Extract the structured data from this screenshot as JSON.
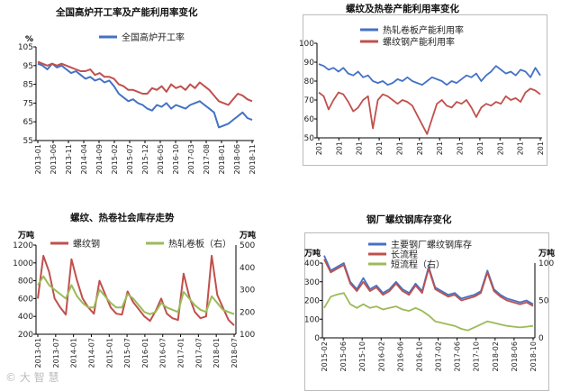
{
  "watermark": "© 大 智 慧",
  "chart_data": [
    {
      "type": "line",
      "title": "全国高炉开工率及产能利用率变化",
      "yunit": "%",
      "ylim": [
        55,
        105
      ],
      "yticks": [
        "105",
        "95",
        "85",
        "75",
        "65",
        "55"
      ],
      "xticks": [
        "2013-01",
        "2013-06",
        "2013-11",
        "2014-04",
        "2014-09",
        "2015-02",
        "2015-07",
        "2015-12",
        "2016-05",
        "2016-10",
        "2017-03",
        "2017-08",
        "2018-01",
        "2018-06",
        "2018-11"
      ],
      "series": [
        {
          "name": "全国高炉开工率",
          "color": "#4472C4",
          "values": [
            96,
            95,
            93,
            96,
            94,
            95,
            93,
            91,
            92,
            90,
            88,
            89,
            87,
            88,
            86,
            87,
            84,
            80,
            78,
            76,
            77,
            75,
            74,
            72,
            71,
            74,
            73,
            75,
            72,
            74,
            73,
            72,
            74,
            75,
            76,
            74,
            72,
            70,
            62,
            63,
            64,
            66,
            68,
            70,
            67,
            66
          ]
        },
        {
          "name": "",
          "color": "#C0504D",
          "values": [
            97,
            96,
            95,
            96,
            95,
            96,
            95,
            94,
            93,
            92,
            92,
            93,
            90,
            91,
            89,
            89,
            88,
            85,
            84,
            82,
            82,
            81,
            80,
            80,
            83,
            82,
            84,
            81,
            85,
            83,
            84,
            82,
            85,
            83,
            86,
            84,
            82,
            79,
            76,
            75,
            74,
            77,
            80,
            79,
            77,
            76
          ]
        }
      ]
    },
    {
      "type": "line",
      "title": "螺纹及热卷产能利用率变化",
      "ylim": [
        50,
        100
      ],
      "yticks": [
        "100",
        "90",
        "80",
        "70",
        "60",
        "50"
      ],
      "xtick_label": "201",
      "series": [
        {
          "name": "热轧卷板产能利用率",
          "color": "#4472C4",
          "values": [
            89,
            88,
            86,
            87,
            85,
            87,
            84,
            83,
            85,
            82,
            83,
            80,
            79,
            80,
            78,
            79,
            81,
            80,
            82,
            80,
            79,
            78,
            80,
            82,
            81,
            80,
            78,
            80,
            79,
            81,
            83,
            82,
            84,
            80,
            83,
            85,
            88,
            86,
            84,
            85,
            83,
            86,
            85,
            82,
            87,
            83
          ]
        },
        {
          "name": "螺纹钢产能利用率",
          "color": "#C0504D",
          "values": [
            74,
            72,
            65,
            70,
            74,
            73,
            69,
            64,
            66,
            70,
            72,
            55,
            70,
            73,
            72,
            70,
            68,
            70,
            69,
            67,
            62,
            57,
            52,
            60,
            68,
            70,
            67,
            66,
            69,
            68,
            70,
            66,
            61,
            66,
            68,
            67,
            69,
            68,
            72,
            70,
            71,
            69,
            74,
            76,
            75,
            73
          ]
        }
      ]
    },
    {
      "type": "line",
      "title": "螺纹、热卷社会库存走势",
      "yunit_left": "万吨",
      "yunit_right": "万吨",
      "ylim": [
        200,
        1200
      ],
      "ylim_right": [
        100,
        500
      ],
      "yticks": [
        "1200",
        "1000",
        "800",
        "600",
        "400",
        "200"
      ],
      "yticks_right": [
        "500",
        "400",
        "300",
        "200",
        "100"
      ],
      "xticks": [
        "2013-01",
        "2013-07",
        "2014-01",
        "2014-07",
        "2015-01",
        "2015-07",
        "2016-01",
        "2016-07",
        "2017-01",
        "2017-07",
        "2018-01",
        "2018-07"
      ],
      "series": [
        {
          "name": "螺纹钢",
          "color": "#C0504D",
          "axis": "left",
          "values": [
            600,
            1080,
            900,
            600,
            500,
            420,
            1040,
            800,
            600,
            500,
            430,
            800,
            650,
            500,
            430,
            420,
            680,
            560,
            480,
            400,
            350,
            460,
            600,
            430,
            380,
            360,
            880,
            620,
            450,
            380,
            400,
            1080,
            640,
            500,
            360,
            300
          ]
        },
        {
          "name": "热轧卷板（右）",
          "color": "#9BBB59",
          "axis": "right",
          "values": [
            320,
            360,
            320,
            300,
            280,
            260,
            320,
            270,
            240,
            220,
            220,
            300,
            270,
            240,
            220,
            220,
            280,
            260,
            230,
            200,
            190,
            200,
            240,
            220,
            210,
            200,
            290,
            260,
            230,
            210,
            200,
            270,
            240,
            210,
            200,
            190
          ]
        }
      ]
    },
    {
      "type": "line",
      "title": "钢厂螺纹钢库存变化",
      "yunit_left": "万吨",
      "yunit_right": "万吨",
      "ylim": [
        0,
        400
      ],
      "ylim_right": [
        0,
        100
      ],
      "yticks": [
        "400",
        "300",
        "200",
        "100",
        "0"
      ],
      "yticks_right": [
        "100",
        "50",
        "0"
      ],
      "xticks": [
        "2015-02",
        "2015-06",
        "2015-10",
        "2016-02",
        "2016-06",
        "2016-10",
        "2017-02",
        "2017-06",
        "2017-10",
        "2018-02",
        "2018-06",
        "2018-10"
      ],
      "series": [
        {
          "name": "主要钢厂螺纹钢库存",
          "color": "#4472C4",
          "axis": "left",
          "values": [
            440,
            360,
            380,
            400,
            300,
            260,
            320,
            260,
            280,
            240,
            260,
            300,
            260,
            240,
            290,
            250,
            380,
            270,
            250,
            230,
            240,
            210,
            220,
            230,
            250,
            360,
            260,
            230,
            210,
            200,
            190,
            200,
            180
          ]
        },
        {
          "name": "长流程",
          "color": "#C0504D",
          "axis": "left",
          "values": [
            420,
            350,
            370,
            390,
            290,
            250,
            300,
            250,
            270,
            230,
            250,
            290,
            250,
            230,
            280,
            240,
            370,
            260,
            240,
            220,
            230,
            200,
            210,
            220,
            240,
            350,
            250,
            220,
            200,
            190,
            180,
            190,
            170
          ]
        },
        {
          "name": "短流程（右）",
          "color": "#9BBB59",
          "axis": "right",
          "values": [
            40,
            55,
            58,
            60,
            45,
            40,
            45,
            40,
            42,
            38,
            40,
            42,
            38,
            36,
            40,
            36,
            30,
            22,
            20,
            18,
            16,
            12,
            10,
            14,
            18,
            22,
            20,
            18,
            16,
            15,
            14,
            15,
            16
          ]
        }
      ]
    }
  ]
}
